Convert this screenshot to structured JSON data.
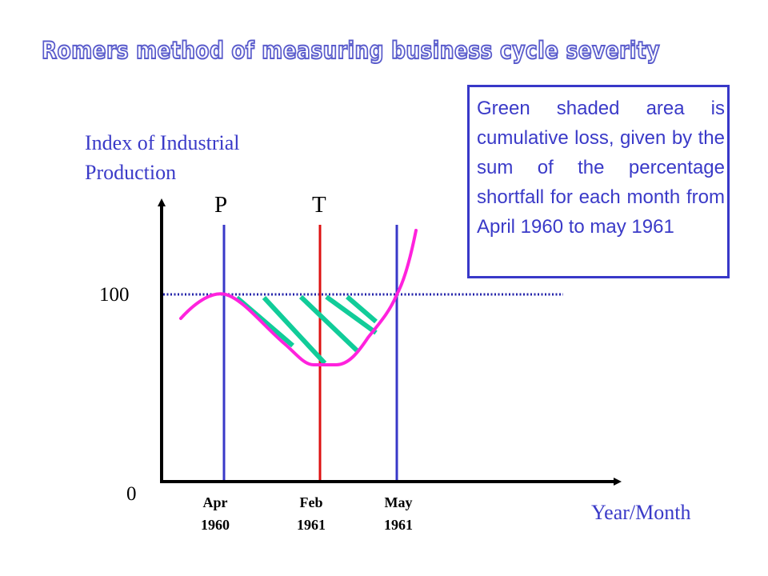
{
  "title": "Romers method of measuring business cycle severity",
  "note": "Green shaded area is cumulative loss, given by the sum of the percentage shortfall for each month from April 1960 to may 1961",
  "y_axis_label": "Index of Industrial Production",
  "x_axis_label": "Year/Month",
  "y_ticks": {
    "top": "100",
    "bottom": "0"
  },
  "markers": {
    "peak": "P",
    "trough": "T"
  },
  "dates": {
    "apr_1960": {
      "month": "Apr",
      "year": "1960"
    },
    "feb_1961": {
      "month": "Feb",
      "year": "1961"
    },
    "may_1961": {
      "month": "May",
      "year": "1961"
    }
  },
  "colors": {
    "title": "#5a5ccc",
    "text": "#3a3ac8",
    "curve": "#ff22dd",
    "trough_line": "#dd1111",
    "month_lines": "#3838c8",
    "shading": "#11cc99",
    "baseline": "#2222aa"
  }
}
